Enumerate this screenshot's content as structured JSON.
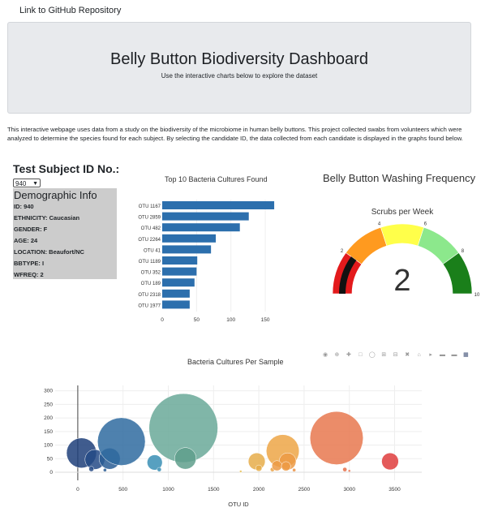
{
  "nav": {
    "link_label": "Link to GitHub Repository"
  },
  "header": {
    "title": "Belly Button Biodiversity Dashboard",
    "subtitle": "Use the interactive charts below to explore the dataset"
  },
  "intro": "This interactive webpage uses data from a study on the biodiversity of the microbiome in human belly buttons. This project collected swabs from volunteers which were analyzed to determine the species found for each subject. By selecting the candidate ID, the data collected from each candidate is displayed in the graphs found below.",
  "selector": {
    "label": "Test Subject ID No.:",
    "value": "940"
  },
  "demographics": {
    "title": "Demographic Info",
    "rows": [
      "ID: 940",
      "ETHNICITY: Caucasian",
      "GENDER: F",
      "AGE: 24",
      "LOCATION: Beaufort/NC",
      "BBTYPE: I",
      "WFREQ: 2"
    ]
  },
  "bar_title": "Top 10 Bacteria Cultures Found",
  "gauge": {
    "title": "Belly Button Washing Frequency",
    "subtitle": "Scrubs per Week",
    "value": "2"
  },
  "bubble_title": "Bacteria Cultures Per Sample",
  "colors": {
    "bar": "#2c6fad",
    "jumbotron": "#e8eaed",
    "demo_panel": "#cccccc"
  },
  "chart_data": [
    {
      "type": "bar",
      "orientation": "horizontal",
      "title": "Top 10 Bacteria Cultures Found",
      "categories": [
        "OTU 1167",
        "OTU 2859",
        "OTU 482",
        "OTU 2264",
        "OTU 41",
        "OTU 1189",
        "OTU 352",
        "OTU 189",
        "OTU 2318",
        "OTU 1977"
      ],
      "values": [
        163,
        126,
        113,
        78,
        71,
        51,
        50,
        47,
        40,
        40
      ],
      "xticks": [
        "0",
        "50",
        "100",
        "150"
      ],
      "xlim": [
        0,
        170
      ]
    },
    {
      "type": "gauge",
      "title": "Scrubs per Week",
      "value": 2,
      "range": [
        0,
        10
      ],
      "ticks": [
        "2",
        "4",
        "6",
        "8",
        "10"
      ],
      "steps": [
        {
          "range": [
            0,
            2
          ],
          "color": "#e31a1c"
        },
        {
          "range": [
            2,
            4
          ],
          "color": "#ff9a1f"
        },
        {
          "range": [
            4,
            6
          ],
          "color": "#ffff4a"
        },
        {
          "range": [
            6,
            8
          ],
          "color": "#8ce88c"
        },
        {
          "range": [
            8,
            10
          ],
          "color": "#1a7f1a"
        }
      ]
    },
    {
      "type": "scatter",
      "title": "Bacteria Cultures Per Sample",
      "xlabel": "OTU ID",
      "xlim": [
        -250,
        3800
      ],
      "ylim": [
        -30,
        320
      ],
      "xticks": [
        0,
        500,
        1000,
        1500,
        2000,
        2500,
        3000,
        3500
      ],
      "yticks": [
        0,
        50,
        100,
        150,
        200,
        250,
        300
      ],
      "points": [
        {
          "x": 41,
          "y": 71,
          "r": 71,
          "c": "#1f3f7a"
        },
        {
          "x": 189,
          "y": 47,
          "r": 47,
          "c": "#244a86"
        },
        {
          "x": 352,
          "y": 50,
          "r": 50,
          "c": "#2a5d94"
        },
        {
          "x": 482,
          "y": 113,
          "r": 113,
          "c": "#2f6ba0"
        },
        {
          "x": 150,
          "y": 12,
          "r": 12,
          "c": "#244a86"
        },
        {
          "x": 300,
          "y": 8,
          "r": 8,
          "c": "#2a5d94"
        },
        {
          "x": 850,
          "y": 36,
          "r": 36,
          "c": "#3a8fb5"
        },
        {
          "x": 900,
          "y": 10,
          "r": 10,
          "c": "#3a8fb5"
        },
        {
          "x": 1167,
          "y": 163,
          "r": 163,
          "c": "#6aa999"
        },
        {
          "x": 1189,
          "y": 51,
          "r": 51,
          "c": "#5f9f8c"
        },
        {
          "x": 1800,
          "y": 3,
          "r": 3,
          "c": "#e8c15a"
        },
        {
          "x": 1977,
          "y": 40,
          "r": 40,
          "c": "#e6ad4a"
        },
        {
          "x": 2000,
          "y": 15,
          "r": 15,
          "c": "#e6ad4a"
        },
        {
          "x": 2150,
          "y": 10,
          "r": 10,
          "c": "#eba347"
        },
        {
          "x": 2264,
          "y": 78,
          "r": 78,
          "c": "#eda647"
        },
        {
          "x": 2318,
          "y": 40,
          "r": 40,
          "c": "#ec9a45"
        },
        {
          "x": 2200,
          "y": 24,
          "r": 24,
          "c": "#ec9a45"
        },
        {
          "x": 2300,
          "y": 22,
          "r": 22,
          "c": "#ec9a45"
        },
        {
          "x": 2390,
          "y": 8,
          "r": 8,
          "c": "#eb9143"
        },
        {
          "x": 2859,
          "y": 126,
          "r": 126,
          "c": "#e8784f"
        },
        {
          "x": 2950,
          "y": 10,
          "r": 10,
          "c": "#e6704a"
        },
        {
          "x": 3000,
          "y": 5,
          "r": 5,
          "c": "#e6704a"
        },
        {
          "x": 3450,
          "y": 40,
          "r": 40,
          "c": "#df3d3d"
        }
      ]
    }
  ]
}
